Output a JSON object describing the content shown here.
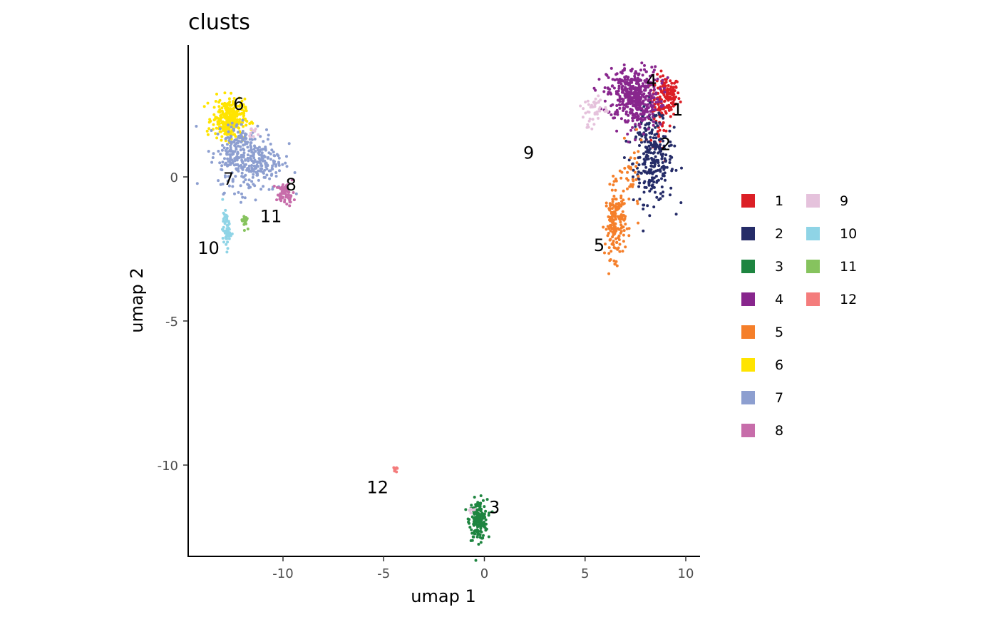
{
  "chart_data": {
    "type": "scatter",
    "title": "clusts",
    "xlabel": "umap 1",
    "ylabel": "umap 2",
    "xlim": [
      -14.5,
      10.7
    ],
    "ylim": [
      -13.0,
      4.5
    ],
    "x_ticks": [
      {
        "value": -10,
        "label": "-10"
      },
      {
        "value": -5,
        "label": "-5"
      },
      {
        "value": 0,
        "label": "0"
      },
      {
        "value": 5,
        "label": "5"
      },
      {
        "value": 10,
        "label": "10"
      }
    ],
    "y_ticks": [
      {
        "value": 0,
        "label": "0"
      },
      {
        "value": -5,
        "label": "-5"
      },
      {
        "value": -10,
        "label": "-10"
      }
    ],
    "grid": false,
    "legend_position": "right",
    "series": [
      {
        "name": "1",
        "color": "#dc1f26",
        "label_pos": [
          9.6,
          2.3
        ],
        "clusters": [
          {
            "cx": 9.0,
            "cy": 2.8,
            "sx": 0.35,
            "sy": 0.35,
            "n": 150
          },
          {
            "cx": 8.7,
            "cy": 1.8,
            "sx": 0.3,
            "sy": 0.6,
            "n": 30
          }
        ]
      },
      {
        "name": "2",
        "color": "#252c68",
        "label_pos": [
          9.0,
          1.1
        ],
        "clusters": [
          {
            "cx": 8.4,
            "cy": 0.5,
            "sx": 0.5,
            "sy": 0.7,
            "n": 230
          },
          {
            "cx": 8.1,
            "cy": 1.6,
            "sx": 0.4,
            "sy": 0.4,
            "n": 40
          }
        ]
      },
      {
        "name": "3",
        "color": "#1e8540",
        "label_pos": [
          0.5,
          -11.5
        ],
        "clusters": [
          {
            "cx": -0.3,
            "cy": -11.9,
            "sx": 0.22,
            "sy": 0.35,
            "n": 180
          }
        ]
      },
      {
        "name": "4",
        "color": "#88268d",
        "label_pos": [
          8.3,
          3.3
        ],
        "clusters": [
          {
            "cx": 7.4,
            "cy": 2.9,
            "sx": 0.65,
            "sy": 0.45,
            "n": 380
          },
          {
            "cx": 7.7,
            "cy": 2.2,
            "sx": 0.4,
            "sy": 0.35,
            "n": 80
          }
        ]
      },
      {
        "name": "5",
        "color": "#f57f2a",
        "label_pos": [
          5.7,
          -2.4
        ],
        "clusters": [
          {
            "cx": 6.5,
            "cy": -1.6,
            "sx": 0.25,
            "sy": 0.6,
            "n": 170
          },
          {
            "cx": 7.3,
            "cy": -0.1,
            "sx": 0.3,
            "sy": 0.6,
            "n": 40
          }
        ]
      },
      {
        "name": "6",
        "color": "#ffe400",
        "label_pos": [
          -12.2,
          2.5
        ],
        "clusters": [
          {
            "cx": -12.7,
            "cy": 2.0,
            "sx": 0.4,
            "sy": 0.35,
            "n": 300
          }
        ]
      },
      {
        "name": "7",
        "color": "#8d9fd0",
        "label_pos": [
          -12.7,
          -0.1
        ],
        "clusters": [
          {
            "cx": -11.6,
            "cy": 0.6,
            "sx": 0.8,
            "sy": 0.55,
            "n": 320
          },
          {
            "cx": -12.5,
            "cy": 1.2,
            "sx": 0.35,
            "sy": 0.4,
            "n": 60
          }
        ]
      },
      {
        "name": "8",
        "color": "#c76daa",
        "label_pos": [
          -9.6,
          -0.3
        ],
        "clusters": [
          {
            "cx": -9.9,
            "cy": -0.6,
            "sx": 0.22,
            "sy": 0.18,
            "n": 60
          }
        ]
      },
      {
        "name": "9",
        "color": "#e5c2dc",
        "label_pos": [
          2.2,
          0.8
        ],
        "clusters": [
          {
            "cx": 5.5,
            "cy": 2.4,
            "sx": 0.3,
            "sy": 0.2,
            "n": 35
          },
          {
            "cx": 5.2,
            "cy": 1.95,
            "sx": 0.1,
            "sy": 0.2,
            "n": 10
          },
          {
            "cx": -11.5,
            "cy": 1.5,
            "sx": 0.15,
            "sy": 0.1,
            "n": 10
          },
          {
            "cx": -0.7,
            "cy": -11.55,
            "sx": 0.1,
            "sy": 0.05,
            "n": 6
          }
        ]
      },
      {
        "name": "10",
        "color": "#8fd4e6",
        "label_pos": [
          -13.7,
          -2.5
        ],
        "clusters": [
          {
            "cx": -12.8,
            "cy": -1.85,
            "sx": 0.1,
            "sy": 0.3,
            "n": 60
          }
        ]
      },
      {
        "name": "11",
        "color": "#86c35e",
        "label_pos": [
          -10.6,
          -1.4
        ],
        "clusters": [
          {
            "cx": -11.9,
            "cy": -1.5,
            "sx": 0.07,
            "sy": 0.12,
            "n": 25
          }
        ]
      },
      {
        "name": "12",
        "color": "#f47c7c",
        "label_pos": [
          -5.3,
          -10.8
        ],
        "clusters": [
          {
            "cx": -4.45,
            "cy": -10.15,
            "sx": 0.05,
            "sy": 0.05,
            "n": 12
          }
        ]
      }
    ]
  }
}
